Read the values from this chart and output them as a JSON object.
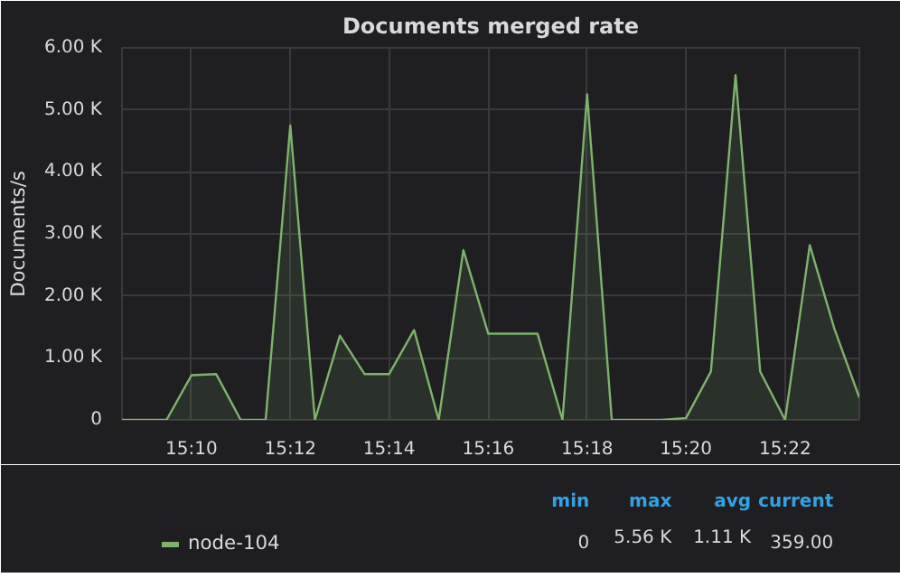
{
  "chart_data": {
    "type": "area",
    "title": "Documents merged rate",
    "ylabel": "Documents/s",
    "x": [
      15.1433,
      15.1583,
      15.1667,
      15.175,
      15.1833,
      15.1917,
      15.2,
      15.2083,
      15.2167,
      15.225,
      15.2333,
      15.2417,
      15.25,
      15.2583,
      15.2667,
      15.275,
      15.2833,
      15.2917,
      15.3,
      15.3083,
      15.3167,
      15.325,
      15.3333,
      15.3417,
      15.35,
      15.3583,
      15.3667,
      15.375,
      15.3833,
      15.3917
    ],
    "series": [
      {
        "name": "node-104",
        "color": "#7eb26d",
        "values": [
          0,
          0,
          720,
          740,
          0,
          0,
          4750,
          0,
          1360,
          740,
          740,
          1450,
          0,
          2740,
          1390,
          1390,
          1390,
          0,
          5250,
          0,
          0,
          0,
          30,
          780,
          5560,
          780,
          0,
          2820,
          1470,
          359
        ]
      }
    ],
    "xlim": [
      15.1433,
      15.3917
    ],
    "xticks": [
      {
        "value": 15.1667,
        "label": "15:10"
      },
      {
        "value": 15.2,
        "label": "15:12"
      },
      {
        "value": 15.2333,
        "label": "15:14"
      },
      {
        "value": 15.2667,
        "label": "15:16"
      },
      {
        "value": 15.3,
        "label": "15:18"
      },
      {
        "value": 15.3333,
        "label": "15:20"
      },
      {
        "value": 15.3667,
        "label": "15:22"
      }
    ],
    "ylim": [
      0,
      6000
    ],
    "yticks": [
      0,
      {
        "value": 1000,
        "label": "1.00 K"
      },
      {
        "value": 2000,
        "label": "2.00 K"
      },
      {
        "value": 3000,
        "label": "3.00 K"
      },
      {
        "value": 4000,
        "label": "4.00 K"
      },
      {
        "value": 5000,
        "label": "5.00 K"
      },
      {
        "value": 6000,
        "label": "6.00 K"
      }
    ],
    "grid": true,
    "legend": "bottom",
    "annotations": [
      "min",
      "max",
      "avg",
      "current",
      "0",
      "5.56 K",
      "1.11 K",
      "359.00"
    ]
  }
}
